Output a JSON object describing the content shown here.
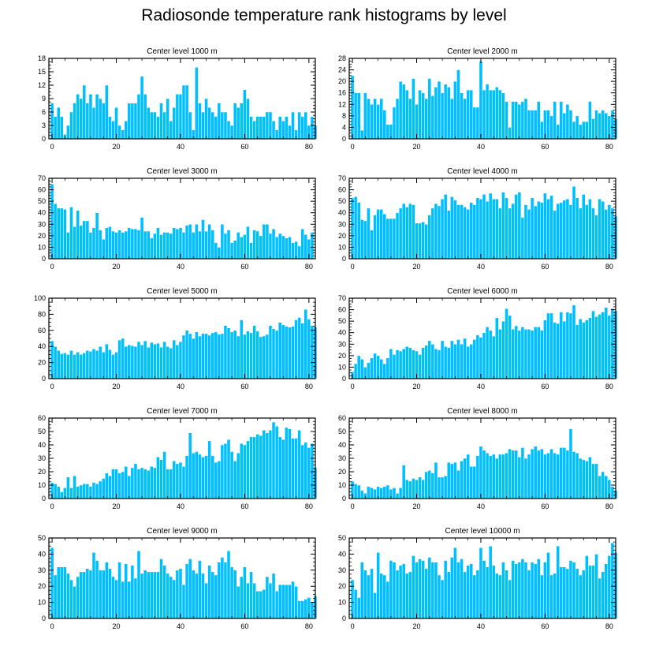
{
  "title": "Radiosonde temperature rank histograms by level",
  "colors": {
    "bar": "#00BFFF",
    "bar_edge": "#ffffff",
    "frame": "#000000"
  },
  "chart_data": [
    {
      "type": "bar",
      "title": "Center level 1000 m",
      "x_start": 0,
      "xlim": [
        -1,
        82
      ],
      "ylim": [
        0,
        18
      ],
      "xticks": [
        0,
        20,
        40,
        60,
        80
      ],
      "yticks": [
        0,
        3,
        6,
        9,
        12,
        15,
        18
      ],
      "values": [
        8,
        5,
        7,
        5,
        1,
        3,
        6,
        8,
        10,
        9,
        12,
        8,
        10,
        7,
        10,
        9,
        8,
        12,
        5,
        4,
        7,
        3,
        2,
        4,
        8,
        8,
        8,
        10,
        14,
        10,
        7,
        6,
        6,
        5,
        8,
        6,
        9,
        4,
        7,
        10,
        10,
        12,
        12,
        6,
        2,
        16,
        8,
        6,
        9,
        7,
        6,
        5,
        8,
        6,
        6,
        4,
        3,
        8,
        7,
        8,
        11,
        9,
        5,
        4,
        5,
        5,
        5,
        6,
        6,
        4,
        2,
        5,
        4,
        5,
        3,
        6,
        2,
        6,
        5,
        6,
        3,
        5,
        3
      ]
    },
    {
      "type": "bar",
      "title": "Center level 2000 m",
      "x_start": 0,
      "xlim": [
        -1,
        82
      ],
      "ylim": [
        0,
        28
      ],
      "xticks": [
        0,
        20,
        40,
        60,
        80
      ],
      "yticks": [
        0,
        4,
        8,
        12,
        16,
        20,
        24,
        28
      ],
      "values": [
        22,
        16,
        16,
        3,
        16,
        14,
        12,
        14,
        12,
        14,
        10,
        5,
        5,
        11,
        14,
        20,
        19,
        17,
        14,
        21,
        12,
        17,
        16,
        14,
        21,
        15,
        18,
        20,
        16,
        19,
        18,
        14,
        20,
        24,
        16,
        14,
        17,
        17,
        11,
        11,
        27,
        17,
        19,
        17,
        17,
        18,
        17,
        16,
        13,
        4,
        13,
        13,
        12,
        13,
        14,
        10,
        10,
        10,
        13,
        6,
        10,
        10,
        8,
        13,
        5,
        13,
        9,
        12,
        10,
        6,
        8,
        5,
        6,
        6,
        13,
        7,
        10,
        9,
        10,
        9,
        8,
        10,
        7
      ]
    },
    {
      "type": "bar",
      "title": "Center level 3000 m",
      "x_start": 0,
      "xlim": [
        -1,
        82
      ],
      "ylim": [
        0,
        70
      ],
      "xticks": [
        0,
        20,
        40,
        60,
        80
      ],
      "yticks": [
        0,
        10,
        20,
        30,
        40,
        50,
        60,
        70
      ],
      "values": [
        65,
        48,
        44,
        44,
        43,
        23,
        45,
        28,
        42,
        29,
        33,
        33,
        23,
        27,
        40,
        25,
        17,
        27,
        28,
        24,
        23,
        25,
        23,
        24,
        27,
        26,
        26,
        25,
        36,
        24,
        24,
        18,
        22,
        27,
        21,
        23,
        23,
        22,
        27,
        26,
        27,
        23,
        29,
        30,
        23,
        30,
        24,
        34,
        24,
        30,
        25,
        14,
        10,
        30,
        22,
        25,
        14,
        16,
        23,
        19,
        21,
        28,
        14,
        25,
        24,
        20,
        30,
        30,
        22,
        26,
        19,
        22,
        20,
        18,
        19,
        14,
        15,
        11,
        26,
        21,
        17,
        23
      ]
    },
    {
      "type": "bar",
      "title": "Center level 4000 m",
      "x_start": 0,
      "xlim": [
        -1,
        82
      ],
      "ylim": [
        0,
        70
      ],
      "xticks": [
        0,
        20,
        40,
        60,
        80
      ],
      "yticks": [
        0,
        10,
        20,
        30,
        40,
        50,
        60,
        70
      ],
      "values": [
        53,
        54,
        49,
        34,
        33,
        44,
        25,
        38,
        43,
        43,
        39,
        35,
        35,
        35,
        40,
        44,
        48,
        45,
        48,
        47,
        31,
        31,
        32,
        30,
        38,
        44,
        48,
        46,
        52,
        56,
        42,
        54,
        51,
        47,
        47,
        45,
        43,
        49,
        47,
        53,
        52,
        56,
        50,
        57,
        52,
        52,
        44,
        58,
        53,
        44,
        48,
        56,
        58,
        36,
        47,
        43,
        53,
        46,
        50,
        49,
        57,
        52,
        55,
        42,
        48,
        49,
        51,
        52,
        47,
        63,
        53,
        44,
        56,
        47,
        52,
        44,
        38,
        52,
        50,
        43,
        47,
        44,
        37
      ]
    },
    {
      "type": "bar",
      "title": "Center level 5000 m",
      "x_start": 0,
      "xlim": [
        -1,
        82
      ],
      "ylim": [
        0,
        100
      ],
      "xticks": [
        0,
        20,
        40,
        60,
        80
      ],
      "yticks": [
        0,
        20,
        40,
        60,
        80,
        100
      ],
      "values": [
        47,
        40,
        35,
        31,
        32,
        30,
        35,
        30,
        33,
        30,
        32,
        35,
        34,
        37,
        35,
        40,
        33,
        43,
        36,
        30,
        33,
        48,
        50,
        40,
        42,
        41,
        40,
        46,
        42,
        47,
        39,
        45,
        43,
        44,
        39,
        46,
        40,
        38,
        48,
        42,
        46,
        54,
        60,
        56,
        50,
        58,
        53,
        56,
        56,
        54,
        57,
        58,
        55,
        56,
        66,
        63,
        58,
        60,
        53,
        73,
        55,
        59,
        57,
        66,
        59,
        52,
        53,
        55,
        66,
        62,
        60,
        70,
        67,
        65,
        64,
        65,
        73,
        76,
        69,
        86,
        74,
        66,
        64
      ]
    },
    {
      "type": "bar",
      "title": "Center level 6000 m",
      "x_start": 0,
      "xlim": [
        -1,
        82
      ],
      "ylim": [
        0,
        70
      ],
      "xticks": [
        0,
        20,
        40,
        60,
        80
      ],
      "yticks": [
        0,
        10,
        20,
        30,
        40,
        50,
        60,
        70
      ],
      "values": [
        6,
        13,
        20,
        17,
        10,
        14,
        18,
        22,
        20,
        17,
        13,
        18,
        26,
        21,
        25,
        24,
        26,
        28,
        27,
        25,
        24,
        21,
        27,
        29,
        33,
        30,
        26,
        25,
        33,
        28,
        27,
        33,
        30,
        34,
        30,
        35,
        28,
        30,
        34,
        38,
        36,
        40,
        45,
        42,
        37,
        53,
        43,
        50,
        61,
        55,
        43,
        46,
        42,
        45,
        43,
        43,
        42,
        45,
        45,
        42,
        51,
        57,
        57,
        49,
        48,
        58,
        50,
        58,
        57,
        64,
        47,
        52,
        49,
        51,
        53,
        59,
        54,
        56,
        58,
        62,
        55,
        61,
        59
      ]
    },
    {
      "type": "bar",
      "title": "Center level 7000 m",
      "x_start": 0,
      "xlim": [
        -1,
        82
      ],
      "ylim": [
        0,
        60
      ],
      "xticks": [
        0,
        20,
        40,
        60,
        80
      ],
      "yticks": [
        0,
        10,
        20,
        30,
        40,
        50,
        60
      ],
      "values": [
        12,
        11,
        9,
        5,
        8,
        16,
        8,
        17,
        9,
        10,
        11,
        11,
        9,
        12,
        11,
        13,
        15,
        19,
        17,
        22,
        22,
        19,
        20,
        24,
        17,
        23,
        26,
        22,
        23,
        22,
        21,
        24,
        23,
        31,
        29,
        35,
        22,
        22,
        28,
        26,
        27,
        24,
        32,
        49,
        34,
        35,
        33,
        31,
        32,
        43,
        32,
        27,
        28,
        40,
        41,
        44,
        35,
        28,
        34,
        41,
        40,
        43,
        46,
        46,
        48,
        47,
        51,
        49,
        51,
        57,
        54,
        46,
        44,
        53,
        52,
        45,
        45,
        51,
        40,
        42,
        38,
        41,
        23
      ]
    },
    {
      "type": "bar",
      "title": "Center level 8000 m",
      "x_start": 0,
      "xlim": [
        -1,
        82
      ],
      "ylim": [
        0,
        60
      ],
      "xticks": [
        0,
        20,
        40,
        60,
        80
      ],
      "yticks": [
        0,
        10,
        20,
        30,
        40,
        50,
        60
      ],
      "values": [
        13,
        11,
        10,
        6,
        4,
        9,
        8,
        7,
        9,
        8,
        9,
        10,
        7,
        8,
        4,
        8,
        25,
        14,
        13,
        15,
        14,
        16,
        14,
        20,
        21,
        19,
        27,
        16,
        16,
        17,
        27,
        26,
        27,
        21,
        28,
        30,
        33,
        24,
        24,
        32,
        39,
        36,
        34,
        32,
        33,
        30,
        33,
        33,
        34,
        37,
        36,
        36,
        31,
        38,
        30,
        33,
        37,
        39,
        36,
        37,
        33,
        34,
        37,
        34,
        33,
        38,
        38,
        36,
        52,
        35,
        34,
        30,
        29,
        28,
        31,
        26,
        26,
        17,
        20,
        17,
        14,
        9,
        6
      ]
    },
    {
      "type": "bar",
      "title": "Center level 9000 m",
      "x_start": 0,
      "xlim": [
        -1,
        82
      ],
      "ylim": [
        0,
        50
      ],
      "xticks": [
        0,
        20,
        40,
        60,
        80
      ],
      "yticks": [
        0,
        10,
        20,
        30,
        40,
        50
      ],
      "values": [
        44,
        27,
        32,
        32,
        32,
        28,
        24,
        20,
        26,
        29,
        29,
        31,
        30,
        41,
        36,
        30,
        30,
        35,
        31,
        26,
        24,
        35,
        23,
        34,
        23,
        33,
        25,
        42,
        28,
        30,
        29,
        29,
        29,
        29,
        37,
        33,
        28,
        26,
        24,
        30,
        31,
        21,
        34,
        37,
        30,
        28,
        36,
        28,
        22,
        33,
        29,
        27,
        35,
        38,
        35,
        42,
        32,
        30,
        20,
        26,
        32,
        22,
        29,
        22,
        17,
        17,
        18,
        26,
        22,
        28,
        17,
        21,
        21,
        21,
        21,
        23,
        20,
        11,
        11,
        12,
        13,
        10,
        14
      ]
    },
    {
      "type": "bar",
      "title": "Center level 10000 m",
      "x_start": 0,
      "xlim": [
        -1,
        82
      ],
      "ylim": [
        0,
        50
      ],
      "xticks": [
        0,
        20,
        40,
        60,
        80
      ],
      "yticks": [
        0,
        10,
        20,
        30,
        40,
        50
      ],
      "values": [
        24,
        18,
        13,
        35,
        30,
        27,
        31,
        16,
        41,
        28,
        27,
        23,
        36,
        35,
        30,
        33,
        34,
        28,
        29,
        39,
        35,
        37,
        36,
        31,
        38,
        35,
        35,
        27,
        24,
        36,
        29,
        38,
        44,
        35,
        37,
        29,
        33,
        34,
        27,
        30,
        44,
        36,
        32,
        45,
        33,
        28,
        27,
        35,
        30,
        24,
        36,
        34,
        35,
        37,
        35,
        30,
        35,
        34,
        37,
        27,
        35,
        41,
        27,
        28,
        45,
        32,
        32,
        31,
        36,
        35,
        31,
        27,
        30,
        39,
        33,
        33,
        40,
        25,
        29,
        34,
        39,
        47,
        41
      ]
    }
  ]
}
